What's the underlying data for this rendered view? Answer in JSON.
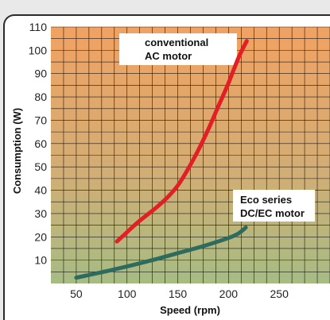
{
  "chart_data": {
    "type": "line",
    "xlabel": "Speed (rpm)",
    "ylabel": "Consumption (W)",
    "x_ticks": [
      50,
      100,
      150,
      200,
      250
    ],
    "y_ticks": [
      10,
      20,
      30,
      40,
      50,
      60,
      70,
      80,
      90,
      100,
      110
    ],
    "xlim": [
      25,
      300
    ],
    "ylim": [
      0,
      110
    ],
    "grid": true,
    "series": [
      {
        "name": "conventional AC motor",
        "color": "#e31e24",
        "x": [
          90,
          100,
          110,
          120,
          130,
          140,
          150,
          160,
          170,
          180,
          190,
          200,
          210,
          218
        ],
        "y": [
          18,
          22,
          26,
          29.5,
          33,
          37,
          42,
          49,
          57,
          66,
          76,
          86,
          97,
          104
        ]
      },
      {
        "name": "Eco series DC/EC motor",
        "color": "#2d6b5e",
        "x": [
          50,
          75,
          100,
          125,
          150,
          175,
          200,
          210,
          217
        ],
        "y": [
          2.5,
          4.8,
          7.3,
          10,
          13,
          16,
          19.5,
          21.5,
          24
        ]
      }
    ],
    "annotations": [
      {
        "lines": [
          "conventional",
          "AC motor"
        ]
      },
      {
        "lines": [
          "Eco series",
          "DC/EC motor"
        ]
      }
    ],
    "colors": {
      "grid_line": "#1a1a1a",
      "background_top": "#f1a262",
      "background_bottom": "#a6bc84"
    }
  }
}
